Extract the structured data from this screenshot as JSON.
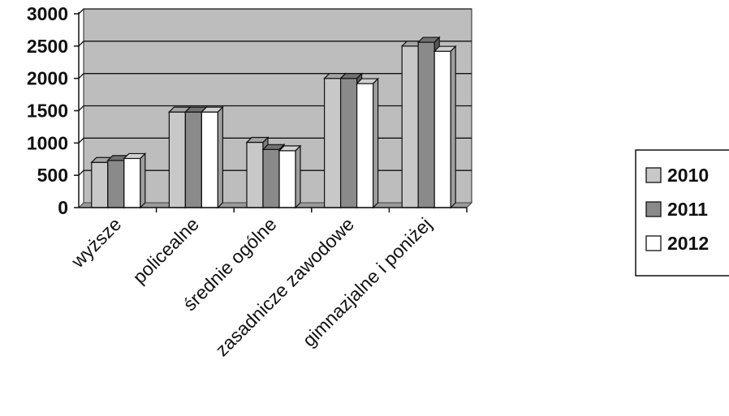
{
  "chart_data": {
    "type": "bar",
    "categories": [
      "wyższe",
      "policealne",
      "średnie ogólne",
      "zasadnicze zawodowe",
      "gimnazjalne i poniżej"
    ],
    "series": [
      {
        "name": "2010",
        "values": [
          700,
          1480,
          1010,
          2000,
          2500
        ]
      },
      {
        "name": "2011",
        "values": [
          730,
          1480,
          900,
          2000,
          2560
        ]
      },
      {
        "name": "2012",
        "values": [
          760,
          1480,
          880,
          1920,
          2420
        ]
      }
    ],
    "yticks": [
      "0",
      "500",
      "1000",
      "1500",
      "2000",
      "2500",
      "3000"
    ],
    "ylim": [
      0,
      3000
    ],
    "grid": true,
    "legend": "right",
    "colors": {
      "2010": "#c8c8c8",
      "2011": "#8a8a8a",
      "2012": "#ffffff",
      "plot_background": "#bdbdbd",
      "floor": "#9a9a9a"
    },
    "title": "",
    "xlabel": "",
    "ylabel": ""
  }
}
